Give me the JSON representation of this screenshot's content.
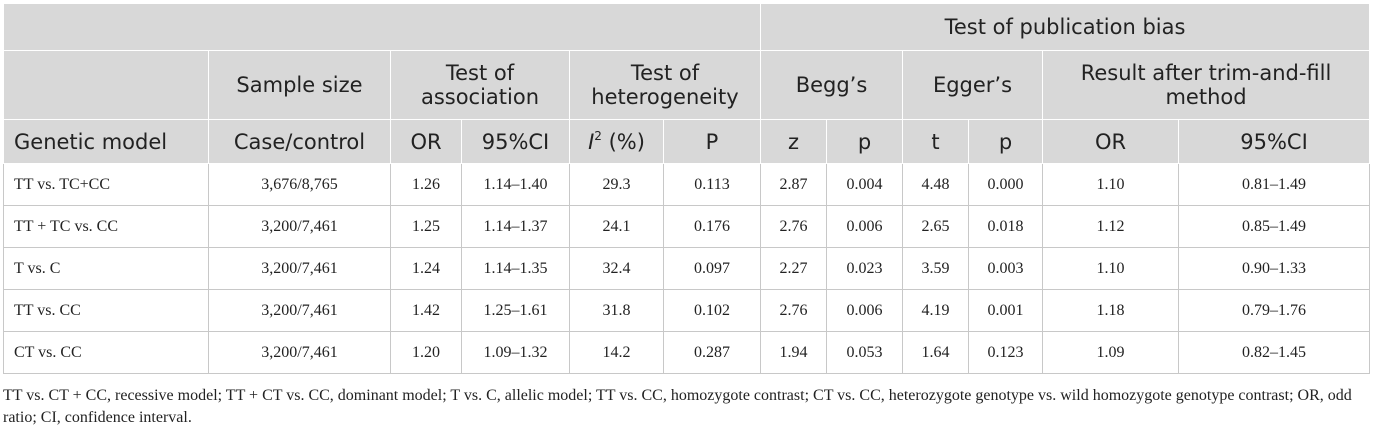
{
  "header": {
    "group_publication_bias": "Test of publication bias",
    "sample_size": "Sample size",
    "test_of_association": "Test of association",
    "test_of_heterogeneity": "Test of heterogeneity",
    "beggs": "Begg’s",
    "eggers": "Egger’s",
    "trim_and_fill": "Result after trim-and-fill method",
    "genetic_model": "Genetic model",
    "case_control": "Case/control",
    "or": "OR",
    "ci95": "95%CI",
    "i2_letter": "I",
    "i2_sup": "2",
    "i2_unit": " (%)",
    "p_upper": "P",
    "z": "z",
    "p_lower": "p",
    "t": "t",
    "p_lower2": "p",
    "or2": "OR",
    "ci95_2": "95%CI"
  },
  "rows": [
    {
      "model": "TT vs. TC+CC",
      "case_control": "3,676/8,765",
      "or": "1.26",
      "ci": "1.14–1.40",
      "i2": "29.3",
      "p": "0.113",
      "begg_z": "2.87",
      "begg_p": "0.004",
      "egger_t": "4.48",
      "egger_p": "0.000",
      "tf_or": "1.10",
      "tf_ci": "0.81–1.49"
    },
    {
      "model": "TT + TC vs. CC",
      "case_control": "3,200/7,461",
      "or": "1.25",
      "ci": "1.14–1.37",
      "i2": "24.1",
      "p": "0.176",
      "begg_z": "2.76",
      "begg_p": "0.006",
      "egger_t": "2.65",
      "egger_p": "0.018",
      "tf_or": "1.12",
      "tf_ci": "0.85–1.49"
    },
    {
      "model": "T vs. C",
      "case_control": "3,200/7,461",
      "or": "1.24",
      "ci": "1.14–1.35",
      "i2": "32.4",
      "p": "0.097",
      "begg_z": "2.27",
      "begg_p": "0.023",
      "egger_t": "3.59",
      "egger_p": "0.003",
      "tf_or": "1.10",
      "tf_ci": "0.90–1.33"
    },
    {
      "model": "TT vs. CC",
      "case_control": "3,200/7,461",
      "or": "1.42",
      "ci": "1.25–1.61",
      "i2": "31.8",
      "p": "0.102",
      "begg_z": "2.76",
      "begg_p": "0.006",
      "egger_t": "4.19",
      "egger_p": "0.001",
      "tf_or": "1.18",
      "tf_ci": "0.79–1.76"
    },
    {
      "model": "CT vs. CC",
      "case_control": "3,200/7,461",
      "or": "1.20",
      "ci": "1.09–1.32",
      "i2": "14.2",
      "p": "0.287",
      "begg_z": "1.94",
      "begg_p": "0.053",
      "egger_t": "1.64",
      "egger_p": "0.123",
      "tf_or": "1.09",
      "tf_ci": "0.82–1.45"
    }
  ],
  "footnote": "TT vs. CT + CC, recessive model; TT + CT vs. CC, dominant model; T vs. C, allelic model; TT vs. CC, homozygote contrast; CT vs. CC, heterozygote genotype vs. wild homozygote genotype contrast; OR, odd ratio; CI, confidence interval."
}
